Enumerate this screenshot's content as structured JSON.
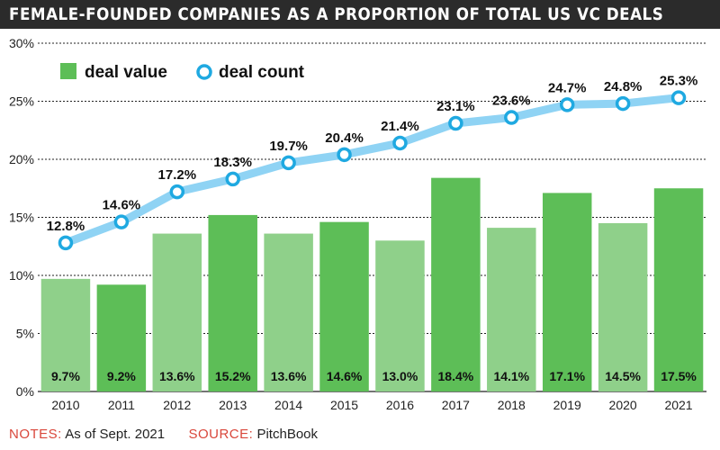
{
  "title": "FEMALE-FOUNDED COMPANIES AS A PROPORTION OF TOTAL US VC DEALS",
  "chart_data": {
    "type": "bar",
    "categories": [
      "2010",
      "2011",
      "2012",
      "2013",
      "2014",
      "2015",
      "2016",
      "2017",
      "2018",
      "2019",
      "2020",
      "2021"
    ],
    "ylim": [
      0,
      30
    ],
    "yticks": [
      "0%",
      "5%",
      "10%",
      "15%",
      "20%",
      "25%",
      "30%"
    ],
    "grid": true,
    "legend_position": "top-left",
    "series": [
      {
        "name": "deal value",
        "type": "bar",
        "values": [
          9.7,
          9.2,
          13.6,
          15.2,
          13.6,
          14.6,
          13.0,
          18.4,
          14.1,
          17.1,
          14.5,
          17.5
        ],
        "labels": [
          "9.7%",
          "9.2%",
          "13.6%",
          "15.2%",
          "13.6%",
          "14.6%",
          "13.0%",
          "18.4%",
          "14.1%",
          "17.1%",
          "14.5%",
          "17.5%"
        ]
      },
      {
        "name": "deal count",
        "type": "line",
        "values": [
          12.8,
          14.6,
          17.2,
          18.3,
          19.7,
          20.4,
          21.4,
          23.1,
          23.6,
          24.7,
          24.8,
          25.3
        ],
        "labels": [
          "12.8%",
          "14.6%",
          "17.2%",
          "18.3%",
          "19.7%",
          "20.4%",
          "21.4%",
          "23.1%",
          "23.6%",
          "24.7%",
          "24.8%",
          "25.3%"
        ]
      }
    ],
    "colors": {
      "bar_light": "#8fd08a",
      "bar_dark": "#5dbe57",
      "line": "#8fd3f4",
      "marker": "#1fa9e1"
    }
  },
  "footer": {
    "notes_label": "NOTES:",
    "notes_text": "As of Sept. 2021",
    "source_label": "SOURCE:",
    "source_text": "PitchBook"
  }
}
